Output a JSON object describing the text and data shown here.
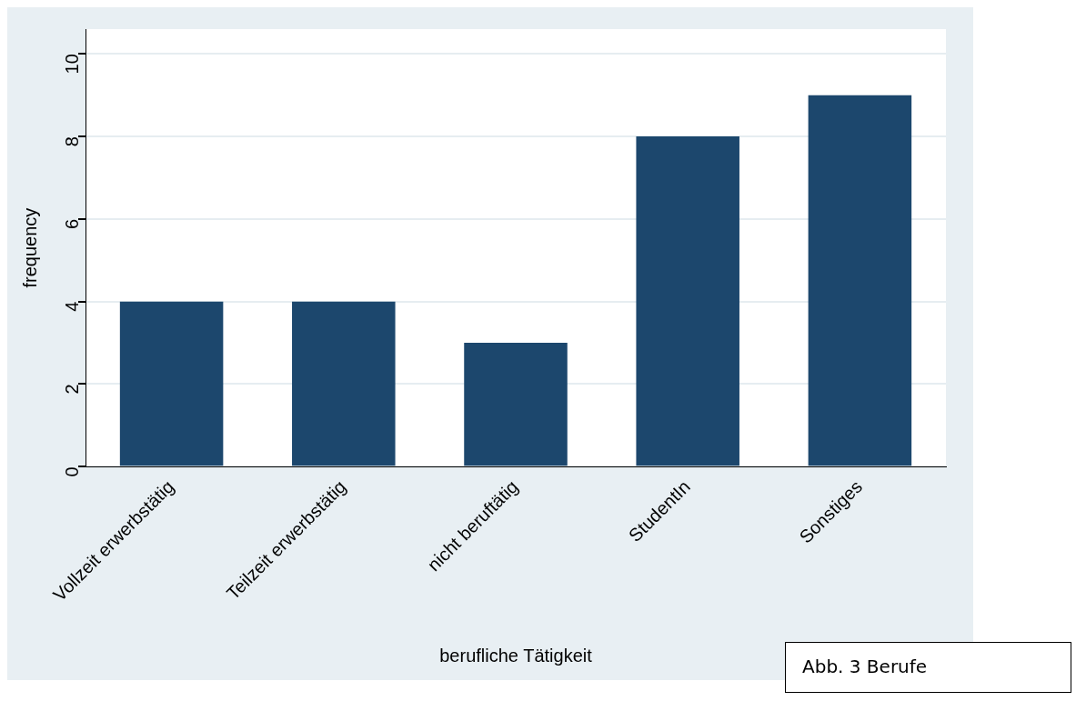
{
  "chart_data": {
    "type": "bar",
    "categories": [
      "Vollzeit erwerbstätig",
      "Teilzeit erwerbstätig",
      "nicht beruftätig",
      "StudentIn",
      "Sonstiges"
    ],
    "values": [
      4,
      4,
      3,
      8,
      9
    ],
    "color": "#1c476d",
    "xlabel": "berufliche Tätigkeit",
    "ylabel": "frequency",
    "ylim": [
      0,
      10.6
    ],
    "yticks": [
      0,
      2,
      4,
      6,
      8,
      10
    ],
    "grid": "y",
    "annotations": [
      "Abb. 3 Berufe"
    ]
  }
}
